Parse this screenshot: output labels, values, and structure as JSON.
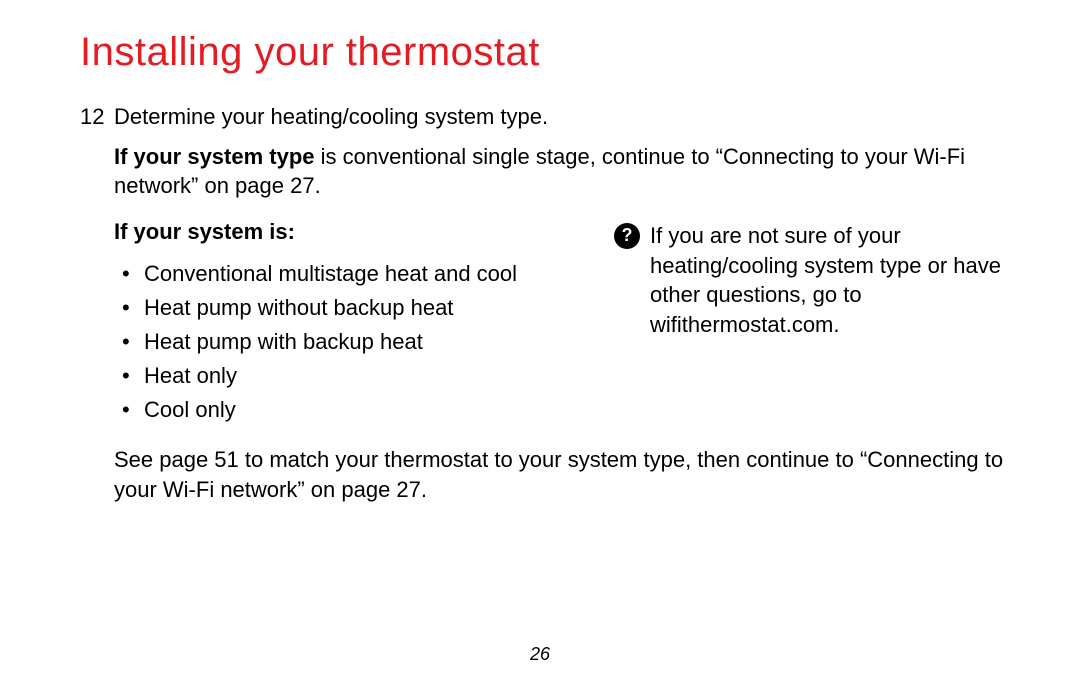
{
  "colors": {
    "heading": "#e31b23",
    "body_text": "#000000",
    "help_icon_bg": "#000000",
    "help_icon_fg": "#ffffff",
    "background": "#ffffff"
  },
  "heading": "Installing your thermostat",
  "step": {
    "number": "12",
    "text": "Determine your heating/cooling system type."
  },
  "intro": {
    "bold": "If your system type",
    "rest": " is conventional single stage, continue to “Connecting to your Wi-Fi network” on page 27."
  },
  "system_list": {
    "heading": "If your system is:",
    "items": [
      "Conventional multistage heat and cool",
      "Heat pump without backup heat",
      "Heat pump with backup heat",
      "Heat only",
      "Cool only"
    ]
  },
  "help": {
    "icon_label": "?",
    "text": "If you are not sure of your heating/cooling system type or have other questions, go to wifithermostat.com."
  },
  "footer_text": "See page 51 to match your thermostat to your system type, then continue to “Connecting to your Wi-Fi network” on page 27.",
  "page_number": "26"
}
